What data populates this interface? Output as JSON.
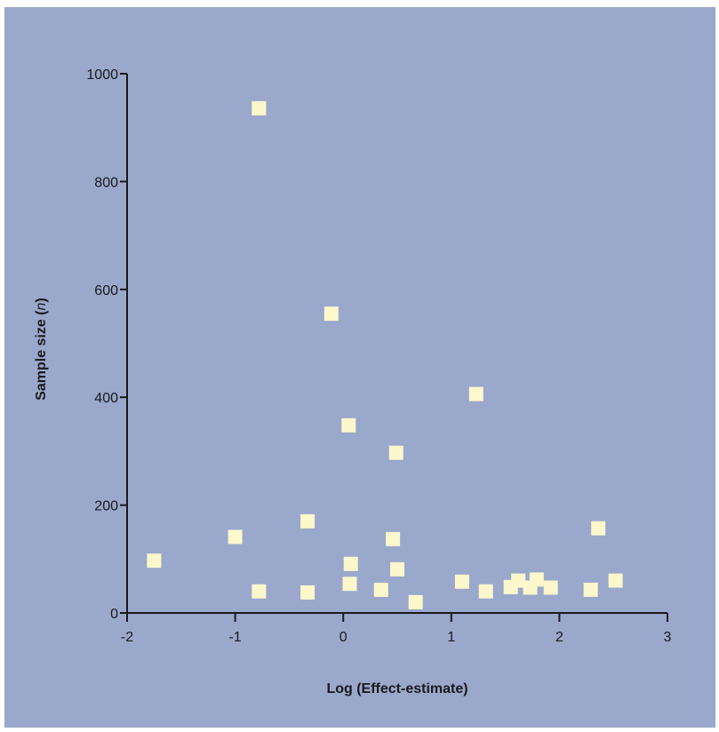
{
  "colors": {
    "background": "#9aa8cc",
    "marker": "#fdf7cc",
    "axis": "#1a1a1a"
  },
  "chart_data": {
    "type": "scatter",
    "title": "",
    "xlabel": "Log (Effect-estimate)",
    "ylabel_prefix": "Sample size (",
    "ylabel_italic": "n",
    "ylabel_suffix": ")",
    "xlim": [
      -2,
      3
    ],
    "ylim": [
      0,
      1000
    ],
    "xticks": [
      -2,
      -1,
      0,
      1,
      2,
      3
    ],
    "yticks": [
      0,
      200,
      400,
      600,
      800,
      1000
    ],
    "grid": false,
    "legend": "none",
    "marker_shape": "square",
    "points": [
      {
        "x": -1.75,
        "y": 97
      },
      {
        "x": -1.0,
        "y": 141
      },
      {
        "x": -0.78,
        "y": 936
      },
      {
        "x": -0.78,
        "y": 40
      },
      {
        "x": -0.33,
        "y": 170
      },
      {
        "x": -0.33,
        "y": 38
      },
      {
        "x": -0.11,
        "y": 555
      },
      {
        "x": 0.05,
        "y": 348
      },
      {
        "x": 0.06,
        "y": 54
      },
      {
        "x": 0.07,
        "y": 91
      },
      {
        "x": 0.35,
        "y": 43
      },
      {
        "x": 0.46,
        "y": 137
      },
      {
        "x": 0.49,
        "y": 297
      },
      {
        "x": 0.5,
        "y": 81
      },
      {
        "x": 0.67,
        "y": 20
      },
      {
        "x": 1.1,
        "y": 58
      },
      {
        "x": 1.23,
        "y": 406
      },
      {
        "x": 1.32,
        "y": 40
      },
      {
        "x": 1.55,
        "y": 48
      },
      {
        "x": 1.62,
        "y": 60
      },
      {
        "x": 1.73,
        "y": 47
      },
      {
        "x": 1.79,
        "y": 62
      },
      {
        "x": 1.92,
        "y": 47
      },
      {
        "x": 2.29,
        "y": 43
      },
      {
        "x": 2.36,
        "y": 157
      },
      {
        "x": 2.52,
        "y": 60
      }
    ]
  }
}
